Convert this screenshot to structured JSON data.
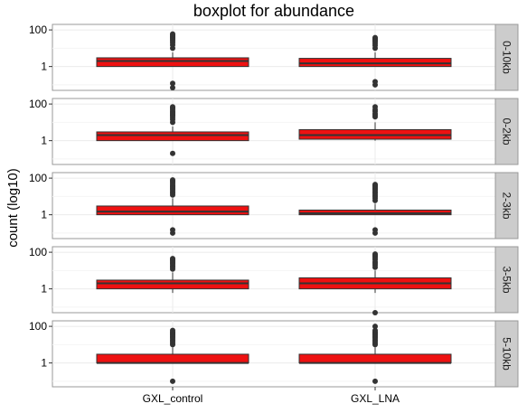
{
  "chart_data": {
    "type": "boxplot",
    "title": "boxplot for abundance",
    "ylabel": "count (log10)",
    "xlabel": "",
    "categories": [
      "GXL_control",
      "GXL_LNA"
    ],
    "y_scale": "log10",
    "ylim": [
      0.05,
      200
    ],
    "y_ticks": [
      {
        "value": 1,
        "label": "1"
      },
      {
        "value": 100,
        "label": "100"
      }
    ],
    "grid": true,
    "colors": {
      "box_fill": "#ee1111",
      "box_line": "#333333",
      "outlier": "#333333",
      "panel_bg": "#ffffff",
      "grid": "#ebebeb",
      "strip_bg": "#cccccc"
    },
    "facets": [
      {
        "strip": "0-10kb",
        "boxes": [
          {
            "category": "GXL_control",
            "q1": 1,
            "median": 2,
            "q3": 3,
            "whisker_low": 1,
            "whisker_high": 6,
            "outliers": [
              10,
              15,
              20,
              25,
              30,
              35,
              40,
              45,
              52,
              60,
              0.12,
              0.07
            ]
          },
          {
            "category": "GXL_LNA",
            "q1": 1,
            "median": 1.5,
            "q3": 2.8,
            "whisker_low": 1,
            "whisker_high": 6,
            "outliers": [
              10,
              14,
              18,
              22,
              26,
              30,
              34,
              38,
              0.15,
              0.1
            ]
          }
        ]
      },
      {
        "strip": "0-2kb",
        "boxes": [
          {
            "category": "GXL_control",
            "q1": 1,
            "median": 2,
            "q3": 3,
            "whisker_low": 1,
            "whisker_high": 6,
            "outliers": [
              10,
              14,
              18,
              22,
              26,
              30,
              35,
              40,
              50,
              60,
              70,
              0.2
            ]
          },
          {
            "category": "GXL_LNA",
            "q1": 1.2,
            "median": 2,
            "q3": 4,
            "whisker_low": 1,
            "whisker_high": 10,
            "outliers": [
              20,
              25,
              30,
              40,
              50,
              70
            ]
          }
        ]
      },
      {
        "strip": "2-3kb",
        "boxes": [
          {
            "category": "GXL_control",
            "q1": 1,
            "median": 1.5,
            "q3": 3,
            "whisker_low": 1,
            "whisker_high": 8,
            "outliers": [
              12,
              15,
              18,
              22,
              26,
              30,
              35,
              40,
              50,
              60,
              70,
              80,
              0.15,
              0.1
            ]
          },
          {
            "category": "GXL_LNA",
            "q1": 1,
            "median": 1.2,
            "q3": 1.8,
            "whisker_low": 1,
            "whisker_high": 4,
            "outliers": [
              6,
              8,
              10,
              12,
              15,
              18,
              22,
              26,
              30,
              35,
              40,
              45,
              0.15,
              0.1
            ]
          }
        ]
      },
      {
        "strip": "3-5kb",
        "boxes": [
          {
            "category": "GXL_control",
            "q1": 1,
            "median": 2,
            "q3": 3,
            "whisker_low": 0.6,
            "whisker_high": 8,
            "outliers": [
              12,
              15,
              18,
              22,
              26,
              30,
              35,
              40,
              45
            ]
          },
          {
            "category": "GXL_LNA",
            "q1": 1,
            "median": 2,
            "q3": 4,
            "whisker_low": 0.6,
            "whisker_high": 10,
            "outliers": [
              15,
              20,
              25,
              30,
              40,
              50,
              60,
              70,
              80,
              0.05
            ]
          }
        ]
      },
      {
        "strip": "5-10kb",
        "boxes": [
          {
            "category": "GXL_control",
            "q1": 1,
            "median": 1,
            "q3": 3,
            "whisker_low": 1,
            "whisker_high": 7,
            "outliers": [
              10,
              12,
              15,
              18,
              22,
              26,
              30,
              35,
              40,
              45,
              50,
              60,
              0.1
            ]
          },
          {
            "category": "GXL_LNA",
            "q1": 1,
            "median": 1,
            "q3": 3,
            "whisker_low": 1,
            "whisker_high": 7,
            "outliers": [
              10,
              12,
              15,
              18,
              22,
              26,
              30,
              35,
              40,
              45,
              50,
              60,
              100,
              0.1
            ]
          }
        ]
      }
    ]
  }
}
